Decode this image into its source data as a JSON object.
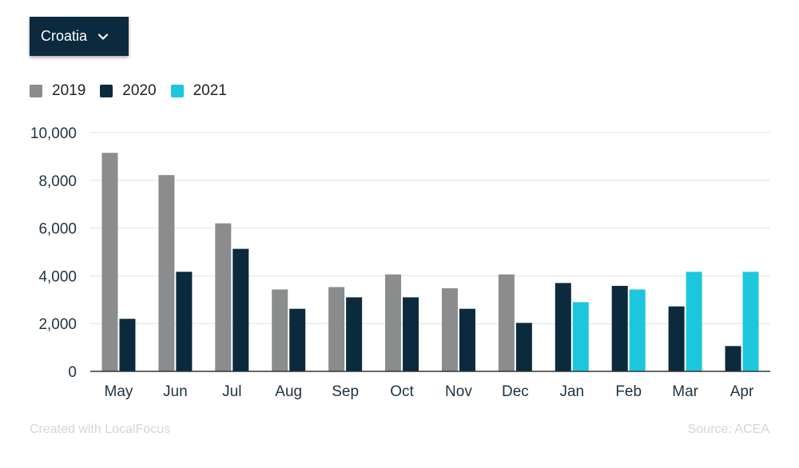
{
  "dropdown": {
    "label": "Croatia"
  },
  "footer": {
    "credit": "Created with LocalFocus",
    "source": "Source:  ACEA"
  },
  "chart_data": {
    "type": "bar",
    "categories": [
      "May",
      "Jun",
      "Jul",
      "Aug",
      "Sep",
      "Oct",
      "Nov",
      "Dec",
      "Jan",
      "Feb",
      "Mar",
      "Apr"
    ],
    "series": [
      {
        "name": "2019",
        "color": "#8a8c8d",
        "values": [
          9150,
          8220,
          6200,
          3430,
          3530,
          4060,
          3480,
          4060,
          null,
          null,
          null,
          null
        ]
      },
      {
        "name": "2020",
        "color": "#0b2a3e",
        "values": [
          2200,
          4170,
          5130,
          2620,
          3100,
          3100,
          2620,
          2030,
          3700,
          3580,
          2720,
          1060
        ]
      },
      {
        "name": "2021",
        "color": "#1cc7de",
        "values": [
          null,
          null,
          null,
          null,
          null,
          null,
          null,
          null,
          2900,
          3430,
          4170,
          4170
        ]
      }
    ],
    "yticks": [
      "0",
      "2,000",
      "4,000",
      "6,000",
      "8,000",
      "10,000"
    ],
    "ylim": [
      0,
      10000
    ],
    "grid": true,
    "legend_position": "top-left"
  }
}
